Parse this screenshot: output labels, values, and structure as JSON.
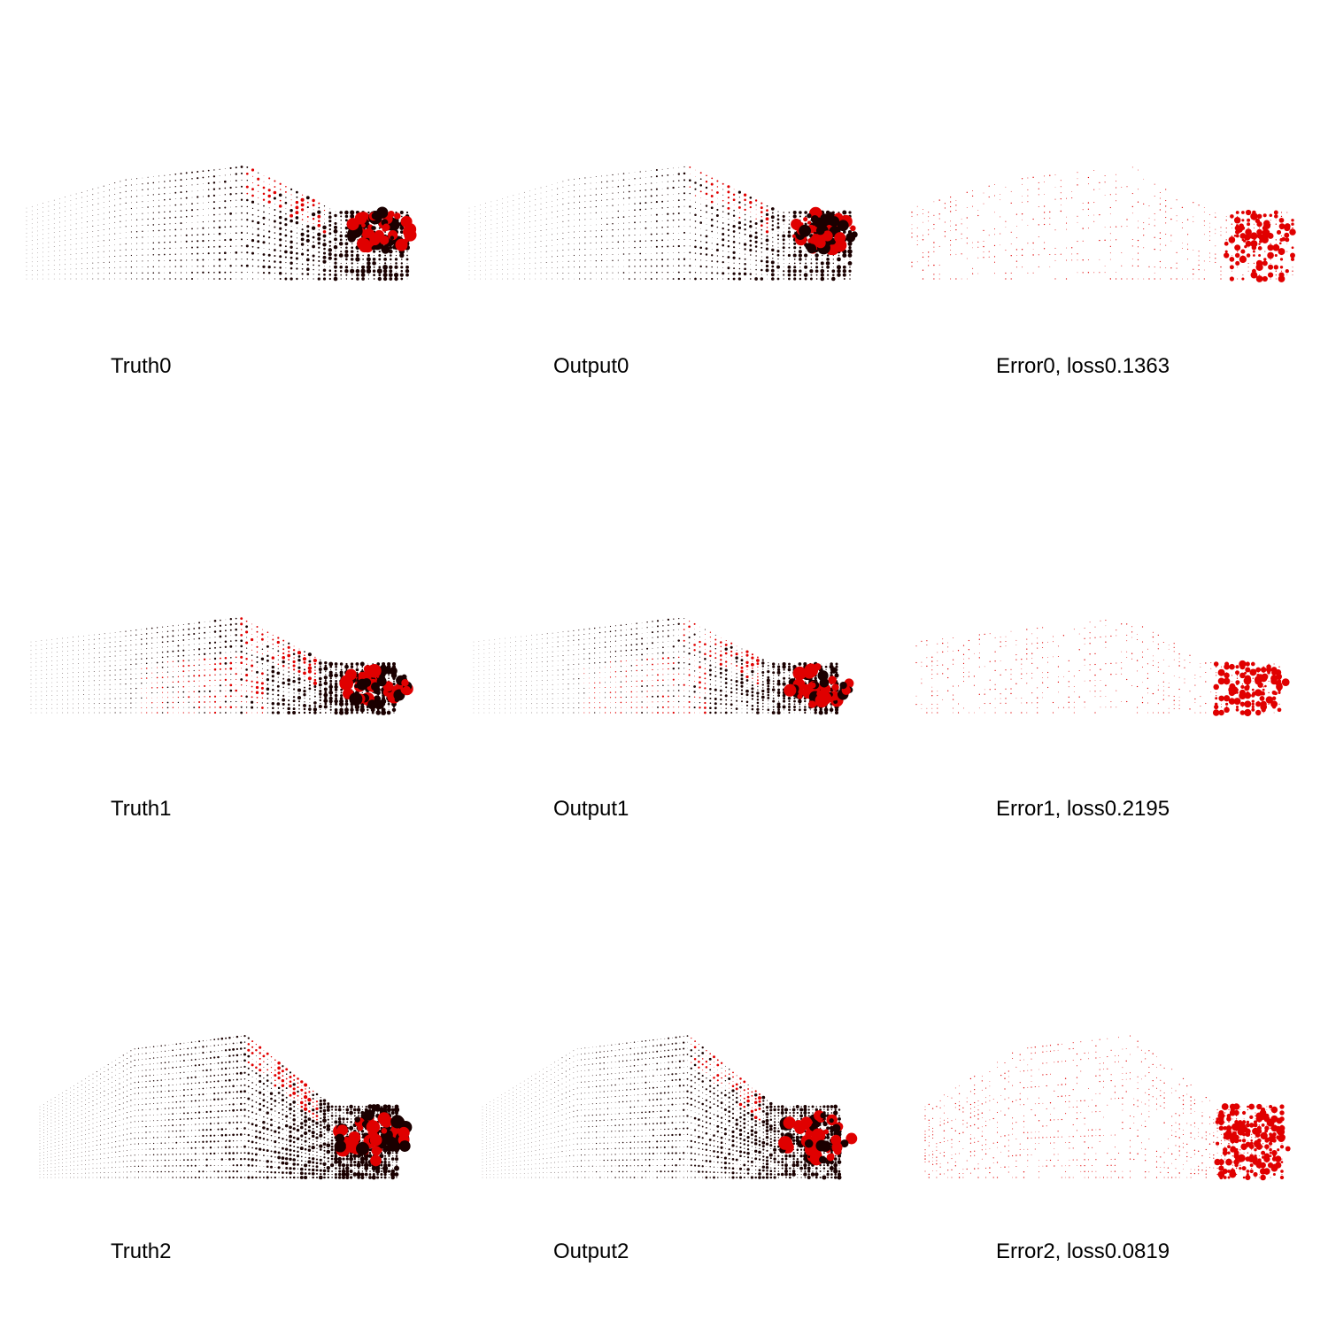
{
  "colors": {
    "background": "#ffffff",
    "point_dark": "#1a0000",
    "point_red": "#e00000",
    "label": "#000000"
  },
  "rows": [
    {
      "truth_label": "Truth0",
      "output_label": "Output0",
      "error_label": "Error0, loss0.1363"
    },
    {
      "truth_label": "Truth1",
      "output_label": "Output1",
      "error_label": "Error1, loss0.2195"
    },
    {
      "truth_label": "Truth2",
      "output_label": "Output2",
      "error_label": "Error2, loss0.0819"
    }
  ]
}
